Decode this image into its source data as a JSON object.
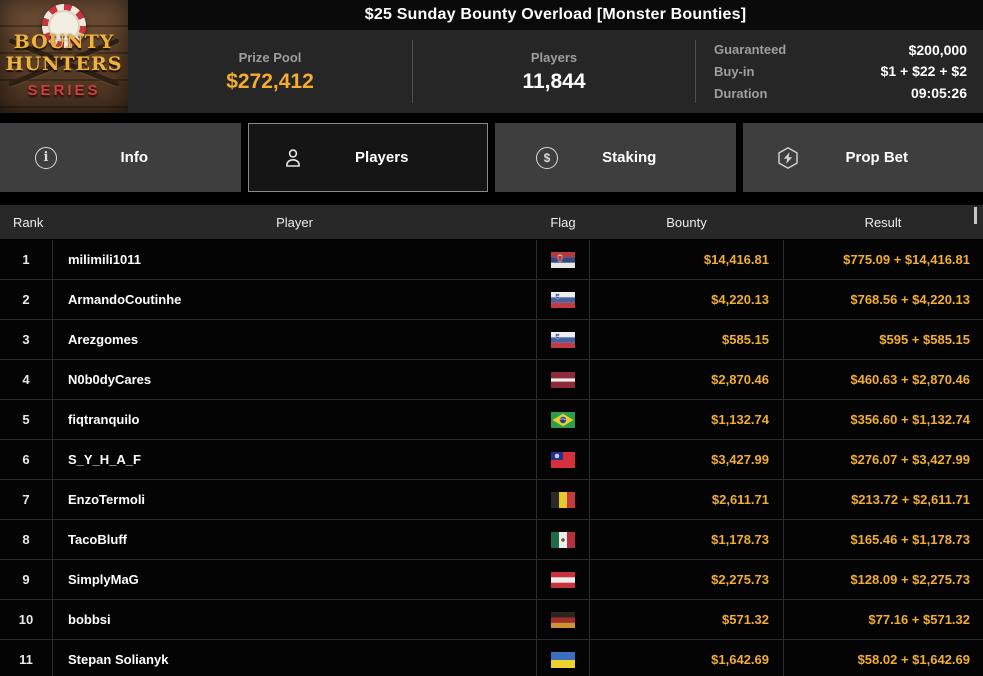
{
  "header": {
    "title": "$25 Sunday Bounty Overload [Monster Bounties]",
    "logo": {
      "line1": "BOUNTY",
      "line2": "HUNTERS",
      "line3": "SERIES"
    },
    "stats": {
      "prize_pool_label": "Prize Pool",
      "prize_pool_value": "$272,412",
      "players_label": "Players",
      "players_value": "11,844",
      "details": [
        {
          "label": "Guaranteed",
          "value": "$200,000"
        },
        {
          "label": "Buy-in",
          "value": "$1 + $22 + $2"
        },
        {
          "label": "Duration",
          "value": "09:05:26"
        }
      ]
    }
  },
  "tabs": [
    {
      "label": "Info",
      "icon": "info-icon",
      "active": false
    },
    {
      "label": "Players",
      "icon": "players-icon",
      "active": true
    },
    {
      "label": "Staking",
      "icon": "staking-icon",
      "active": false
    },
    {
      "label": "Prop Bet",
      "icon": "prop-bet-icon",
      "active": false
    }
  ],
  "table": {
    "columns": [
      "Rank",
      "Player",
      "Flag",
      "Bounty",
      "Result"
    ],
    "rows": [
      {
        "rank": "1",
        "player": "milimili1011",
        "flag": "serbia",
        "bounty": "$14,416.81",
        "result": "$775.09 + $14,416.81"
      },
      {
        "rank": "2",
        "player": "ArmandoCoutinhe",
        "flag": "slovenia",
        "bounty": "$4,220.13",
        "result": "$768.56 + $4,220.13"
      },
      {
        "rank": "3",
        "player": "Arezgomes",
        "flag": "slovenia",
        "bounty": "$585.15",
        "result": "$595 + $585.15"
      },
      {
        "rank": "4",
        "player": "N0b0dyCares",
        "flag": "latvia",
        "bounty": "$2,870.46",
        "result": "$460.63 + $2,870.46"
      },
      {
        "rank": "5",
        "player": "fiqtranquilo",
        "flag": "brazil",
        "bounty": "$1,132.74",
        "result": "$356.60 + $1,132.74"
      },
      {
        "rank": "6",
        "player": "S_Y_H_A_F",
        "flag": "taiwan",
        "bounty": "$3,427.99",
        "result": "$276.07 + $3,427.99"
      },
      {
        "rank": "7",
        "player": "EnzoTermoli",
        "flag": "belgium",
        "bounty": "$2,611.71",
        "result": "$213.72 + $2,611.71"
      },
      {
        "rank": "8",
        "player": "TacoBluff",
        "flag": "mexico",
        "bounty": "$1,178.73",
        "result": "$165.46 + $1,178.73"
      },
      {
        "rank": "9",
        "player": "SimplyMaG",
        "flag": "austria",
        "bounty": "$2,275.73",
        "result": "$128.09 + $2,275.73"
      },
      {
        "rank": "10",
        "player": "bobbsi",
        "flag": "germany",
        "bounty": "$571.32",
        "result": "$77.16 + $571.32"
      },
      {
        "rank": "11",
        "player": "Stepan Solianyk",
        "flag": "ukraine",
        "bounty": "$1,642.69",
        "result": "$58.02 + $1,642.69"
      }
    ]
  },
  "colors": {
    "accent_gold": "#f3ae31"
  }
}
